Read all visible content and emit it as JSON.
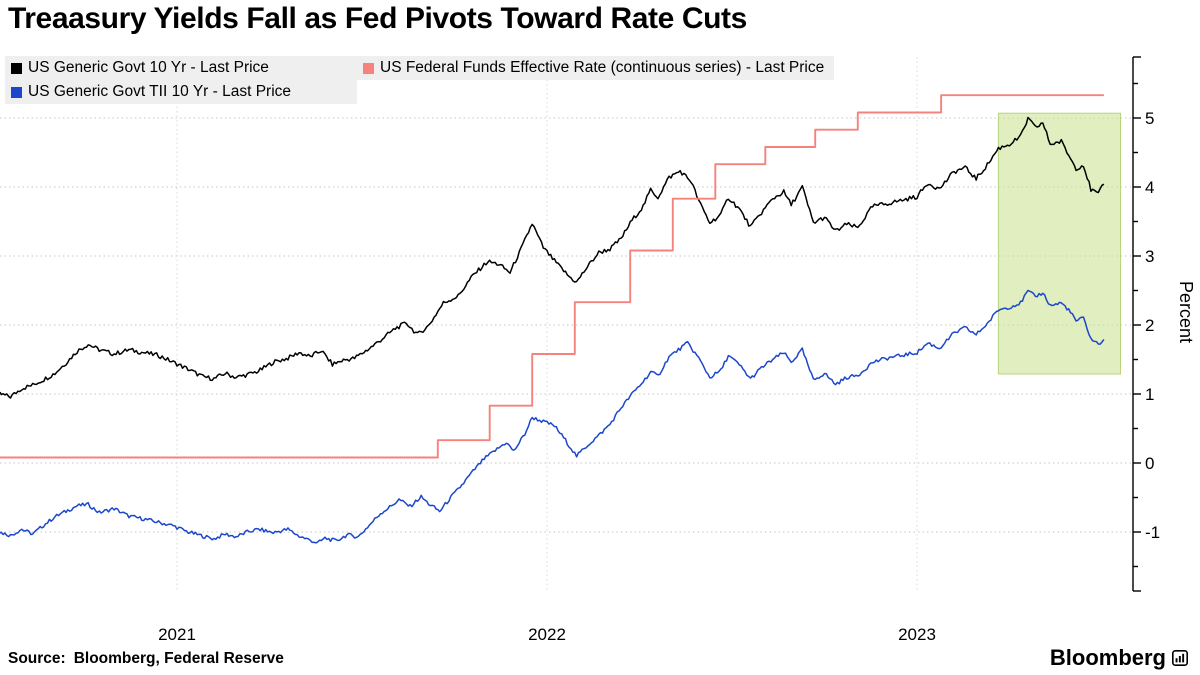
{
  "footer": {
    "source_prefix": "Source:",
    "source_text": "Bloomberg, Federal Reserve",
    "brand": "Bloomberg"
  },
  "legend": {
    "items": [
      {
        "label": "US Generic Govt 10 Yr - Last Price",
        "color": "#000000"
      },
      {
        "label": "US Federal Funds Effective Rate (continuous series) - Last Price",
        "color": "#f5827d"
      },
      {
        "label": "US Generic Govt TII 10 Yr - Last Price",
        "color": "#1c47cc"
      }
    ]
  },
  "chart_data": {
    "type": "line",
    "title": "Treaasury Yields Fall as Fed Pivots Toward Rate Cuts",
    "xlabel": "",
    "ylabel": "Percent",
    "xlim": [
      2021.0,
      2024.1
    ],
    "ylim": [
      -1.9,
      5.9
    ],
    "grid": "dotted",
    "legend_position": "top-left",
    "x_ticks": {
      "values": [
        2021.5,
        2022.5,
        2023.5
      ],
      "labels": [
        "2021",
        "2022",
        "2023"
      ]
    },
    "y_ticks": {
      "values": [
        5,
        4,
        3,
        2,
        1,
        0,
        -1
      ],
      "labels": [
        "5",
        "4",
        "3",
        "2",
        "1",
        "0",
        "-1"
      ]
    },
    "highlight_region": {
      "x_start": 2023.72,
      "x_end": 2024.05,
      "v_top": 5.07,
      "v_bottom": 1.29,
      "fill": "#cfe39a",
      "border": "#b9d37f"
    },
    "series": [
      {
        "name": "US Generic Govt 10 Yr - Last Price",
        "color": "#000000",
        "style": "line",
        "points": [
          [
            2021.02,
            1.0
          ],
          [
            2021.05,
            0.96
          ],
          [
            2021.08,
            1.08
          ],
          [
            2021.11,
            1.13
          ],
          [
            2021.14,
            1.21
          ],
          [
            2021.17,
            1.3
          ],
          [
            2021.2,
            1.45
          ],
          [
            2021.23,
            1.62
          ],
          [
            2021.26,
            1.72
          ],
          [
            2021.29,
            1.64
          ],
          [
            2021.33,
            1.58
          ],
          [
            2021.37,
            1.64
          ],
          [
            2021.41,
            1.6
          ],
          [
            2021.45,
            1.56
          ],
          [
            2021.49,
            1.46
          ],
          [
            2021.53,
            1.36
          ],
          [
            2021.57,
            1.25
          ],
          [
            2021.6,
            1.22
          ],
          [
            2021.63,
            1.3
          ],
          [
            2021.66,
            1.24
          ],
          [
            2021.69,
            1.28
          ],
          [
            2021.72,
            1.33
          ],
          [
            2021.76,
            1.46
          ],
          [
            2021.8,
            1.52
          ],
          [
            2021.83,
            1.6
          ],
          [
            2021.86,
            1.54
          ],
          [
            2021.89,
            1.63
          ],
          [
            2021.92,
            1.43
          ],
          [
            2021.95,
            1.49
          ],
          [
            2021.98,
            1.52
          ],
          [
            2022.02,
            1.66
          ],
          [
            2022.05,
            1.78
          ],
          [
            2022.09,
            1.95
          ],
          [
            2022.12,
            2.03
          ],
          [
            2022.15,
            1.86
          ],
          [
            2022.18,
            1.99
          ],
          [
            2022.22,
            2.32
          ],
          [
            2022.26,
            2.42
          ],
          [
            2022.3,
            2.72
          ],
          [
            2022.34,
            2.92
          ],
          [
            2022.37,
            2.88
          ],
          [
            2022.4,
            2.76
          ],
          [
            2022.43,
            3.1
          ],
          [
            2022.46,
            3.47
          ],
          [
            2022.49,
            3.12
          ],
          [
            2022.52,
            2.93
          ],
          [
            2022.56,
            2.7
          ],
          [
            2022.58,
            2.62
          ],
          [
            2022.61,
            2.85
          ],
          [
            2022.64,
            3.05
          ],
          [
            2022.67,
            3.1
          ],
          [
            2022.7,
            3.25
          ],
          [
            2022.73,
            3.52
          ],
          [
            2022.76,
            3.72
          ],
          [
            2022.78,
            3.96
          ],
          [
            2022.8,
            3.85
          ],
          [
            2022.83,
            4.14
          ],
          [
            2022.86,
            4.23
          ],
          [
            2022.89,
            4.08
          ],
          [
            2022.91,
            3.8
          ],
          [
            2022.94,
            3.48
          ],
          [
            2022.97,
            3.6
          ],
          [
            2022.99,
            3.85
          ],
          [
            2023.02,
            3.68
          ],
          [
            2023.05,
            3.42
          ],
          [
            2023.08,
            3.63
          ],
          [
            2023.11,
            3.83
          ],
          [
            2023.14,
            3.93
          ],
          [
            2023.16,
            3.74
          ],
          [
            2023.19,
            4.0
          ],
          [
            2023.22,
            3.48
          ],
          [
            2023.25,
            3.56
          ],
          [
            2023.28,
            3.36
          ],
          [
            2023.31,
            3.46
          ],
          [
            2023.34,
            3.41
          ],
          [
            2023.38,
            3.72
          ],
          [
            2023.42,
            3.76
          ],
          [
            2023.46,
            3.81
          ],
          [
            2023.5,
            3.86
          ],
          [
            2023.53,
            4.06
          ],
          [
            2023.56,
            3.97
          ],
          [
            2023.6,
            4.22
          ],
          [
            2023.63,
            4.28
          ],
          [
            2023.66,
            4.12
          ],
          [
            2023.69,
            4.32
          ],
          [
            2023.72,
            4.56
          ],
          [
            2023.75,
            4.62
          ],
          [
            2023.78,
            4.73
          ],
          [
            2023.8,
            4.99
          ],
          [
            2023.82,
            4.86
          ],
          [
            2023.84,
            4.93
          ],
          [
            2023.86,
            4.62
          ],
          [
            2023.89,
            4.66
          ],
          [
            2023.91,
            4.46
          ],
          [
            2023.93,
            4.27
          ],
          [
            2023.95,
            4.32
          ],
          [
            2023.97,
            3.96
          ],
          [
            2023.99,
            3.9
          ],
          [
            2024.005,
            4.04
          ]
        ]
      },
      {
        "name": "US Generic Govt TII 10 Yr - Last Price",
        "color": "#1c47cc",
        "style": "line",
        "points": [
          [
            2021.02,
            -1.0
          ],
          [
            2021.05,
            -1.05
          ],
          [
            2021.08,
            -0.96
          ],
          [
            2021.11,
            -1.03
          ],
          [
            2021.14,
            -0.9
          ],
          [
            2021.17,
            -0.78
          ],
          [
            2021.2,
            -0.7
          ],
          [
            2021.23,
            -0.62
          ],
          [
            2021.26,
            -0.6
          ],
          [
            2021.29,
            -0.72
          ],
          [
            2021.33,
            -0.66
          ],
          [
            2021.37,
            -0.77
          ],
          [
            2021.41,
            -0.81
          ],
          [
            2021.45,
            -0.86
          ],
          [
            2021.49,
            -0.91
          ],
          [
            2021.53,
            -1.0
          ],
          [
            2021.57,
            -1.06
          ],
          [
            2021.6,
            -1.1
          ],
          [
            2021.63,
            -1.03
          ],
          [
            2021.66,
            -1.07
          ],
          [
            2021.69,
            -1.0
          ],
          [
            2021.72,
            -0.96
          ],
          [
            2021.76,
            -1.01
          ],
          [
            2021.8,
            -0.96
          ],
          [
            2021.83,
            -1.06
          ],
          [
            2021.86,
            -1.12
          ],
          [
            2021.88,
            -1.16
          ],
          [
            2021.9,
            -1.09
          ],
          [
            2021.93,
            -1.13
          ],
          [
            2021.96,
            -1.04
          ],
          [
            2021.99,
            -1.07
          ],
          [
            2022.02,
            -0.9
          ],
          [
            2022.05,
            -0.73
          ],
          [
            2022.08,
            -0.62
          ],
          [
            2022.1,
            -0.53
          ],
          [
            2022.13,
            -0.63
          ],
          [
            2022.16,
            -0.49
          ],
          [
            2022.18,
            -0.59
          ],
          [
            2022.21,
            -0.7
          ],
          [
            2022.24,
            -0.5
          ],
          [
            2022.27,
            -0.32
          ],
          [
            2022.3,
            -0.12
          ],
          [
            2022.33,
            0.06
          ],
          [
            2022.36,
            0.18
          ],
          [
            2022.39,
            0.3
          ],
          [
            2022.41,
            0.17
          ],
          [
            2022.44,
            0.42
          ],
          [
            2022.46,
            0.66
          ],
          [
            2022.49,
            0.6
          ],
          [
            2022.52,
            0.54
          ],
          [
            2022.55,
            0.33
          ],
          [
            2022.58,
            0.1
          ],
          [
            2022.61,
            0.26
          ],
          [
            2022.64,
            0.4
          ],
          [
            2022.67,
            0.56
          ],
          [
            2022.7,
            0.8
          ],
          [
            2022.73,
            1.0
          ],
          [
            2022.76,
            1.18
          ],
          [
            2022.78,
            1.32
          ],
          [
            2022.8,
            1.26
          ],
          [
            2022.83,
            1.54
          ],
          [
            2022.86,
            1.66
          ],
          [
            2022.88,
            1.74
          ],
          [
            2022.91,
            1.52
          ],
          [
            2022.94,
            1.24
          ],
          [
            2022.97,
            1.34
          ],
          [
            2022.99,
            1.56
          ],
          [
            2023.02,
            1.42
          ],
          [
            2023.05,
            1.22
          ],
          [
            2023.08,
            1.38
          ],
          [
            2023.11,
            1.5
          ],
          [
            2023.14,
            1.6
          ],
          [
            2023.16,
            1.46
          ],
          [
            2023.19,
            1.64
          ],
          [
            2023.22,
            1.2
          ],
          [
            2023.25,
            1.3
          ],
          [
            2023.28,
            1.14
          ],
          [
            2023.31,
            1.24
          ],
          [
            2023.34,
            1.27
          ],
          [
            2023.38,
            1.46
          ],
          [
            2023.42,
            1.52
          ],
          [
            2023.46,
            1.56
          ],
          [
            2023.5,
            1.6
          ],
          [
            2023.53,
            1.74
          ],
          [
            2023.56,
            1.66
          ],
          [
            2023.6,
            1.88
          ],
          [
            2023.63,
            1.96
          ],
          [
            2023.66,
            1.86
          ],
          [
            2023.69,
            2.02
          ],
          [
            2023.72,
            2.22
          ],
          [
            2023.75,
            2.26
          ],
          [
            2023.78,
            2.32
          ],
          [
            2023.8,
            2.49
          ],
          [
            2023.82,
            2.41
          ],
          [
            2023.84,
            2.47
          ],
          [
            2023.86,
            2.28
          ],
          [
            2023.89,
            2.32
          ],
          [
            2023.91,
            2.22
          ],
          [
            2023.93,
            2.06
          ],
          [
            2023.95,
            2.1
          ],
          [
            2023.97,
            1.8
          ],
          [
            2023.99,
            1.72
          ],
          [
            2024.005,
            1.79
          ]
        ]
      },
      {
        "name": "US Federal Funds Effective Rate (continuous series) - Last Price",
        "color": "#f5827d",
        "style": "step",
        "points": [
          [
            2021.02,
            0.08
          ],
          [
            2022.205,
            0.08
          ],
          [
            2022.205,
            0.33
          ],
          [
            2022.345,
            0.33
          ],
          [
            2022.345,
            0.83
          ],
          [
            2022.46,
            0.83
          ],
          [
            2022.46,
            1.58
          ],
          [
            2022.575,
            1.58
          ],
          [
            2022.575,
            2.33
          ],
          [
            2022.725,
            2.33
          ],
          [
            2022.725,
            3.08
          ],
          [
            2022.84,
            3.08
          ],
          [
            2022.84,
            3.83
          ],
          [
            2022.955,
            3.83
          ],
          [
            2022.955,
            4.33
          ],
          [
            2023.09,
            4.33
          ],
          [
            2023.09,
            4.58
          ],
          [
            2023.225,
            4.58
          ],
          [
            2023.225,
            4.83
          ],
          [
            2023.34,
            4.83
          ],
          [
            2023.34,
            5.08
          ],
          [
            2023.565,
            5.08
          ],
          [
            2023.565,
            5.33
          ],
          [
            2024.005,
            5.33
          ]
        ]
      }
    ]
  }
}
